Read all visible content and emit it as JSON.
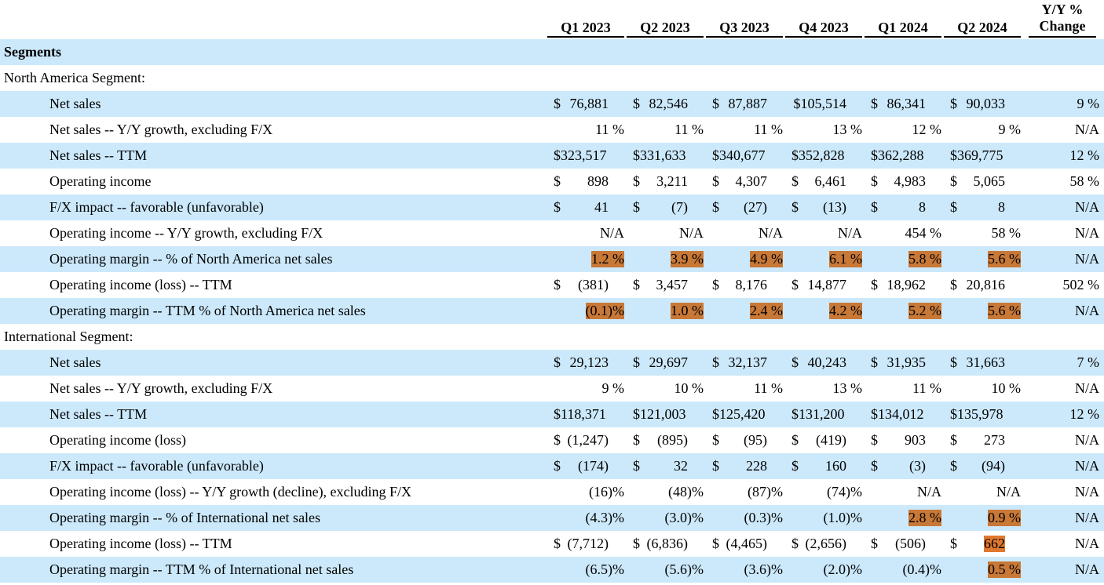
{
  "header": {
    "columns": [
      "Q1 2023",
      "Q2 2023",
      "Q3 2023",
      "Q4 2023",
      "Q1 2024",
      "Q2 2024"
    ],
    "yy_line1": "Y/Y %",
    "yy_line2": "Change"
  },
  "colors": {
    "row_shade": "#cce9fb",
    "highlight": "#c87837",
    "highlight_bright": "#e0782f"
  },
  "rows": [
    {
      "label": "Segments",
      "type": "section",
      "shaded": true
    },
    {
      "label": "North America Segment:",
      "type": "group",
      "shaded": false
    },
    {
      "label": "Net sales",
      "dollar": [
        true,
        true,
        true,
        false,
        true,
        true
      ],
      "values": [
        "76,881",
        "82,546",
        "87,887",
        "$105,514",
        "86,341",
        "90,033"
      ],
      "yy": "9 %",
      "shaded": true
    },
    {
      "label": "Net sales -- Y/Y growth, excluding F/X",
      "values": [
        "11 %",
        "11 %",
        "11 %",
        "13 %",
        "12 %",
        "9 %"
      ],
      "yy": "N/A",
      "shaded": false
    },
    {
      "label": "Net sales -- TTM",
      "values": [
        "$323,517",
        "$331,633",
        "$340,677",
        "$352,828",
        "$362,288",
        "$369,775"
      ],
      "yy": "12 %",
      "shaded": true,
      "left_aligned": true
    },
    {
      "label": "Operating income",
      "dollar": [
        true,
        true,
        true,
        true,
        true,
        true
      ],
      "values": [
        "898",
        "3,211",
        "4,307",
        "6,461",
        "4,983",
        "5,065"
      ],
      "yy": "58 %",
      "shaded": false
    },
    {
      "label": "F/X impact -- favorable (unfavorable)",
      "dollar": [
        true,
        true,
        true,
        true,
        true,
        true
      ],
      "values": [
        "41",
        "(7)",
        "(27)",
        "(13)",
        "8",
        "8"
      ],
      "yy": "N/A",
      "shaded": true
    },
    {
      "label": "Operating income -- Y/Y growth, excluding F/X",
      "values": [
        "N/A",
        "N/A",
        "N/A",
        "N/A",
        "454 %",
        "58 %"
      ],
      "yy": "N/A",
      "shaded": false
    },
    {
      "label": "Operating margin -- % of North America net sales",
      "values": [
        "1.2 %",
        "3.9 %",
        "4.9 %",
        "6.1 %",
        "5.8 %",
        "5.6 %"
      ],
      "highlight": [
        true,
        true,
        true,
        true,
        true,
        true
      ],
      "yy": "N/A",
      "shaded": true,
      "shade_right_only": true
    },
    {
      "label": "Operating income (loss) -- TTM",
      "dollar": [
        true,
        true,
        true,
        true,
        true,
        true
      ],
      "values": [
        "(381)",
        "3,457",
        "8,176",
        "14,877",
        "18,962",
        "20,816"
      ],
      "yy": "502 %",
      "shaded": false
    },
    {
      "label": "Operating margin -- TTM % of North America net sales",
      "values": [
        "(0.1)%",
        "1.0 %",
        "2.4 %",
        "4.2 %",
        "5.2 %",
        "5.6 %"
      ],
      "highlight": [
        true,
        true,
        true,
        true,
        true,
        true
      ],
      "yy": "N/A",
      "shaded": true
    },
    {
      "label": "International Segment:",
      "type": "group",
      "shaded": false
    },
    {
      "label": "Net sales",
      "dollar": [
        true,
        true,
        true,
        true,
        true,
        true
      ],
      "values": [
        "29,123",
        "29,697",
        "32,137",
        "40,243",
        "31,935",
        "31,663"
      ],
      "yy": "7 %",
      "shaded": true
    },
    {
      "label": "Net sales -- Y/Y growth, excluding F/X",
      "values": [
        "9 %",
        "10 %",
        "11 %",
        "13 %",
        "11 %",
        "10 %"
      ],
      "yy": "N/A",
      "shaded": false
    },
    {
      "label": "Net sales -- TTM",
      "values": [
        "$118,371",
        "$121,003",
        "$125,420",
        "$131,200",
        "$134,012",
        "$135,978"
      ],
      "yy": "12 %",
      "shaded": true,
      "left_aligned": true
    },
    {
      "label": "Operating income (loss)",
      "dollar": [
        true,
        true,
        true,
        true,
        true,
        true
      ],
      "values": [
        "(1,247)",
        "(895)",
        "(95)",
        "(419)",
        "903",
        "273"
      ],
      "yy": "N/A",
      "shaded": false
    },
    {
      "label": "F/X impact -- favorable (unfavorable)",
      "dollar": [
        true,
        true,
        true,
        true,
        true,
        true
      ],
      "values": [
        "(174)",
        "32",
        "228",
        "160",
        "(3)",
        "(94)"
      ],
      "yy": "N/A",
      "shaded": true
    },
    {
      "label": "Operating income (loss) -- Y/Y growth (decline), excluding F/X",
      "values": [
        "(16)%",
        "(48)%",
        "(87)%",
        "(74)%",
        "N/A",
        "N/A"
      ],
      "yy": "N/A",
      "shaded": false
    },
    {
      "label": "Operating margin -- % of International net sales",
      "values": [
        "(4.3)%",
        "(3.0)%",
        "(0.3)%",
        "(1.0)%",
        "2.8 %",
        "0.9 %"
      ],
      "highlight": [
        false,
        false,
        false,
        false,
        true,
        true
      ],
      "yy": "N/A",
      "shaded": true
    },
    {
      "label": "Operating income (loss) -- TTM",
      "dollar": [
        true,
        true,
        true,
        true,
        true,
        true
      ],
      "values": [
        "(7,712)",
        "(6,836)",
        "(4,465)",
        "(2,656)",
        "(506)",
        "662"
      ],
      "highlight_bright": [
        false,
        false,
        false,
        false,
        false,
        true
      ],
      "yy": "N/A",
      "shaded": false
    },
    {
      "label": "Operating margin -- TTM % of International net sales",
      "values": [
        "(6.5)%",
        "(5.6)%",
        "(3.6)%",
        "(2.0)%",
        "(0.4)%",
        "0.5 %"
      ],
      "highlight": [
        false,
        false,
        false,
        false,
        false,
        true
      ],
      "yy": "N/A",
      "shaded": true
    }
  ]
}
